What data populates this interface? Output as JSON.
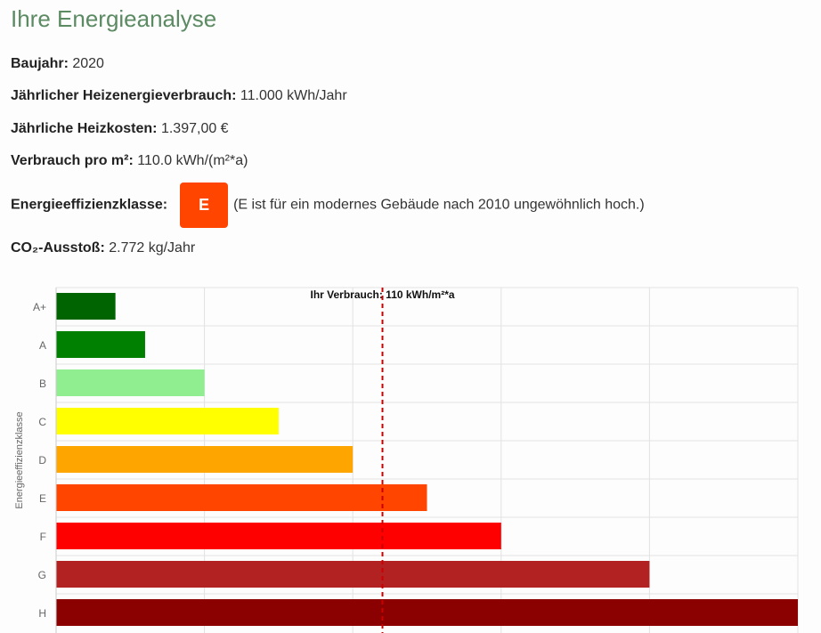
{
  "title": "Ihre Energieanalyse",
  "fields": [
    {
      "label": "Baujahr:",
      "value": "2020"
    },
    {
      "label": "Jährlicher Heizenergieverbrauch:",
      "value": "11.000 kWh/Jahr"
    },
    {
      "label": "Jährliche Heizkosten:",
      "value": "1.397,00 €"
    },
    {
      "label": "Verbrauch pro m²:",
      "value": "110.0 kWh/(m²*a)"
    }
  ],
  "efficiency": {
    "label": "Energieeffizienzklasse:",
    "class": "E",
    "note": "(E ist für ein modernes Gebäude nach 2010 ungewöhnlich hoch.)",
    "color": "#ff4500"
  },
  "co2": {
    "label": "CO₂-Ausstoß:",
    "value": "2.772 kg/Jahr"
  },
  "chart_data": {
    "type": "bar",
    "orientation": "horizontal",
    "categories": [
      "A+",
      "A",
      "B",
      "C",
      "D",
      "E",
      "F",
      "G",
      "H"
    ],
    "values": [
      20,
      30,
      50,
      75,
      100,
      125,
      150,
      200,
      250
    ],
    "colors": [
      "#006400",
      "#008000",
      "#90ee90",
      "#ffff00",
      "#ffa500",
      "#ff4500",
      "#ff0000",
      "#b22222",
      "#8b0000"
    ],
    "ylabel": "Energieeffizienzklasse",
    "xlim": [
      0,
      250
    ],
    "grid": true,
    "annotation": {
      "value": 110,
      "label": "Ihr Verbrauch: 110 kWh/m²*a",
      "color": "#cc0000"
    }
  }
}
